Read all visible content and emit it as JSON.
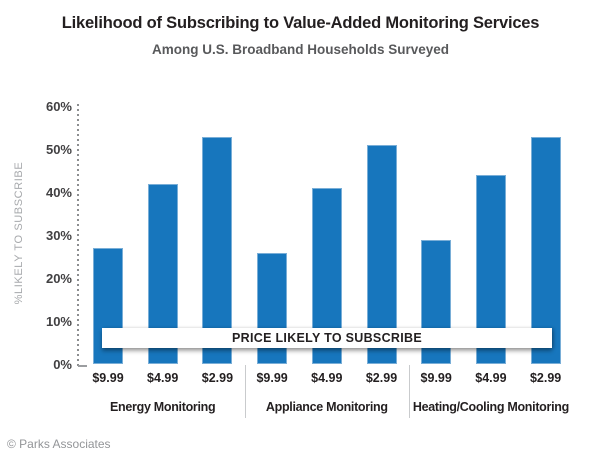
{
  "header": {
    "title": "Likelihood of Subscribing to Value-Added Monitoring Services",
    "subtitle": "Among U.S. Broadband Households Surveyed"
  },
  "banner": {
    "label": "PRICE LIKELY TO SUBSCRIBE"
  },
  "footer": {
    "attribution": "© Parks Associates"
  },
  "colors": {
    "bar": "#1776BD",
    "bar_edge": "#79AED7",
    "title_text": "#231F20",
    "subtitle_text": "#58595B",
    "axis_text": "#414042",
    "muted_text": "#939598"
  },
  "chart_data": {
    "type": "bar",
    "title": "Likelihood of Subscribing to Value-Added Monitoring Services",
    "subtitle": "Among U.S. Broadband Households Surveyed",
    "xlabel": "",
    "ylabel": "%LIKELY TO SUBSCRIBE",
    "ylim": [
      0,
      60
    ],
    "ytick_interval": 10,
    "ytick_labels": [
      "0%",
      "10%",
      "20%",
      "30%",
      "40%",
      "50%",
      "60%"
    ],
    "grid": "dotted y-axis line only",
    "legend": "none",
    "bar_color": "#1776BD",
    "categories": [
      "$9.99",
      "$4.99",
      "$2.99"
    ],
    "groups": [
      {
        "label": "Energy Monitoring",
        "values": [
          27,
          42,
          53
        ]
      },
      {
        "label": "Appliance Monitoring",
        "values": [
          26,
          41,
          51
        ]
      },
      {
        "label": "Heating/Cooling Monitoring",
        "values": [
          29,
          44,
          53
        ]
      }
    ],
    "annotation": "PRICE LIKELY TO SUBSCRIBE"
  }
}
